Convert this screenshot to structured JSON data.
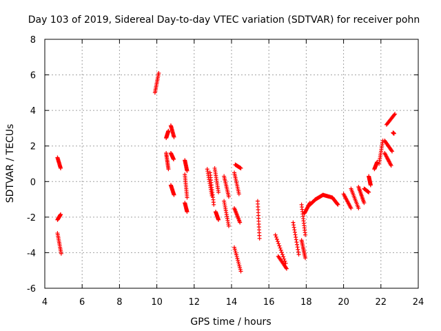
{
  "chart_data": {
    "type": "scatter",
    "title": "Day 103 of 2019, Sidereal Day-to-day VTEC variation (SDTVAR) for receiver pohn",
    "xlabel": "GPS time / hours",
    "ylabel": "SDTVAR / TECUs",
    "xlim": [
      4,
      24
    ],
    "ylim": [
      -6,
      8
    ],
    "xticks": [
      4,
      6,
      8,
      10,
      12,
      14,
      16,
      18,
      20,
      22,
      24
    ],
    "yticks": [
      -6,
      -4,
      -2,
      0,
      2,
      4,
      6,
      8
    ],
    "grid": true,
    "marker": "+",
    "series": [
      {
        "name": "SDTVAR",
        "color": "#ff0000",
        "segments": [
          {
            "x": [
              4.68,
              4.85
            ],
            "y": [
              1.35,
              0.75
            ]
          },
          {
            "x": [
              4.68,
              4.85
            ],
            "y": [
              -2.15,
              -1.85
            ]
          },
          {
            "x": [
              4.68,
              4.88
            ],
            "y": [
              -2.9,
              -4.05
            ]
          },
          {
            "x": [
              9.9,
              10.1
            ],
            "y": [
              5.0,
              6.1
            ]
          },
          {
            "x": [
              10.5,
              10.62
            ],
            "y": [
              2.45,
              2.85
            ]
          },
          {
            "x": [
              10.5,
              10.62
            ],
            "y": [
              1.6,
              0.7
            ]
          },
          {
            "x": [
              10.75,
              10.92
            ],
            "y": [
              3.15,
              2.5
            ]
          },
          {
            "x": [
              10.75,
              10.9
            ],
            "y": [
              1.6,
              1.25
            ]
          },
          {
            "x": [
              10.75,
              10.92
            ],
            "y": [
              -0.2,
              -0.75
            ]
          },
          {
            "x": [
              11.5,
              11.62
            ],
            "y": [
              1.2,
              0.6
            ]
          },
          {
            "x": [
              11.5,
              11.62
            ],
            "y": [
              0.4,
              -0.9
            ]
          },
          {
            "x": [
              11.5,
              11.62
            ],
            "y": [
              -1.2,
              -1.7
            ]
          },
          {
            "x": [
              12.7,
              12.95
            ],
            "y": [
              0.7,
              -0.8
            ]
          },
          {
            "x": [
              12.85,
              13.05
            ],
            "y": [
              0.5,
              -1.3
            ]
          },
          {
            "x": [
              13.1,
              13.3
            ],
            "y": [
              0.75,
              -0.6
            ]
          },
          {
            "x": [
              13.15,
              13.3
            ],
            "y": [
              -1.7,
              -2.15
            ]
          },
          {
            "x": [
              13.6,
              13.85
            ],
            "y": [
              0.3,
              -0.85
            ]
          },
          {
            "x": [
              13.6,
              13.85
            ],
            "y": [
              -1.1,
              -2.5
            ]
          },
          {
            "x": [
              14.15,
              14.4
            ],
            "y": [
              0.5,
              -0.7
            ]
          },
          {
            "x": [
              14.2,
              14.5
            ],
            "y": [
              0.95,
              0.75
            ]
          },
          {
            "x": [
              14.15,
              14.45
            ],
            "y": [
              -1.5,
              -2.3
            ]
          },
          {
            "x": [
              14.15,
              14.5
            ],
            "y": [
              -3.7,
              -5.05
            ]
          },
          {
            "x": [
              15.4,
              15.5
            ],
            "y": [
              -1.1,
              -3.2
            ]
          },
          {
            "x": [
              16.35,
              16.9
            ],
            "y": [
              -3.0,
              -4.6
            ]
          },
          {
            "x": [
              16.5,
              16.95
            ],
            "y": [
              -4.2,
              -4.9
            ]
          },
          {
            "x": [
              17.3,
              17.6
            ],
            "y": [
              -2.3,
              -4.1
            ]
          },
          {
            "x": [
              17.75,
              17.95
            ],
            "y": [
              -3.3,
              -4.3
            ]
          },
          {
            "x": [
              17.75,
              17.95
            ],
            "y": [
              -1.3,
              -3.0
            ]
          },
          {
            "x": [
              17.9,
              18.2
            ],
            "y": [
              -1.8,
              -1.2
            ]
          },
          {
            "x": [
              18.2,
              18.5
            ],
            "y": [
              -1.3,
              -1.0
            ]
          },
          {
            "x": [
              18.5,
              18.9
            ],
            "y": [
              -1.0,
              -0.75
            ]
          },
          {
            "x": [
              18.9,
              19.4
            ],
            "y": [
              -0.75,
              -0.9
            ]
          },
          {
            "x": [
              19.4,
              19.7
            ],
            "y": [
              -0.9,
              -1.3
            ]
          },
          {
            "x": [
              20.0,
              20.4
            ],
            "y": [
              -0.7,
              -1.5
            ]
          },
          {
            "x": [
              20.4,
              20.8
            ],
            "y": [
              -0.4,
              -1.5
            ]
          },
          {
            "x": [
              20.8,
              21.1
            ],
            "y": [
              -0.3,
              -1.2
            ]
          },
          {
            "x": [
              21.1,
              21.35
            ],
            "y": [
              -0.4,
              -0.6
            ]
          },
          {
            "x": [
              21.35,
              21.45
            ],
            "y": [
              0.3,
              -0.2
            ]
          },
          {
            "x": [
              21.65,
              21.8
            ],
            "y": [
              0.7,
              1.1
            ]
          },
          {
            "x": [
              21.9,
              22.1
            ],
            "y": [
              1.0,
              2.3
            ]
          },
          {
            "x": [
              22.2,
              22.55
            ],
            "y": [
              1.6,
              0.9
            ]
          },
          {
            "x": [
              22.2,
              22.6
            ],
            "y": [
              2.3,
              1.7
            ]
          },
          {
            "x": [
              22.3,
              22.75
            ],
            "y": [
              3.2,
              3.8
            ]
          },
          {
            "x": [
              22.65,
              22.7
            ],
            "y": [
              2.75,
              2.7
            ]
          }
        ]
      }
    ]
  }
}
